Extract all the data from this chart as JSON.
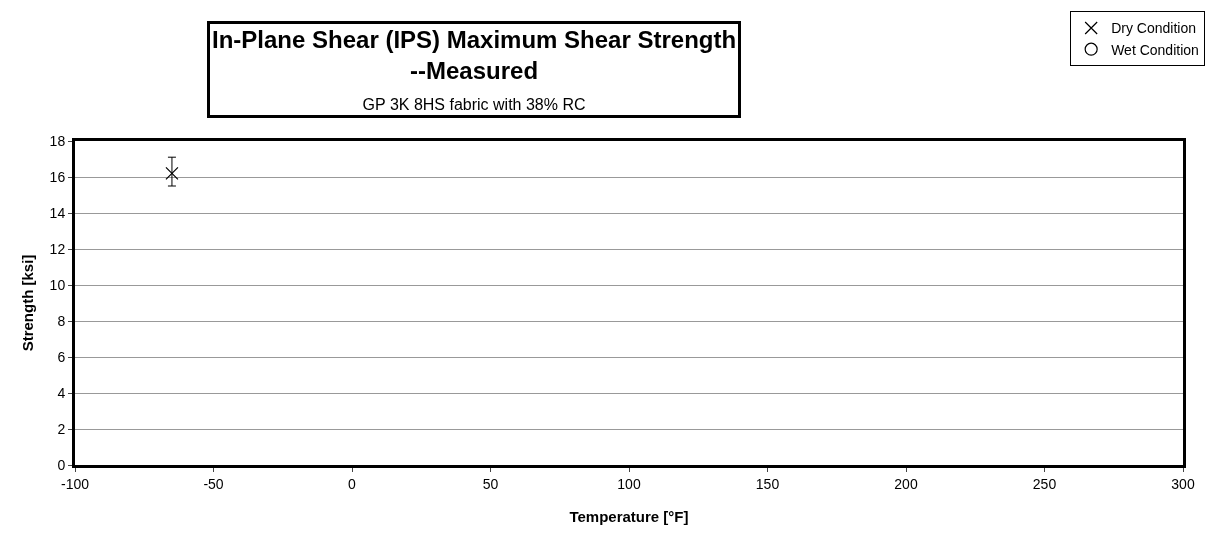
{
  "chart_data": {
    "type": "scatter",
    "title": "In-Plane Shear (IPS) Maximum Shear Strength --Measured",
    "subtitle": "GP 3K 8HS fabric with 38% RC",
    "xlabel": "Temperature [°F]",
    "ylabel": "Strength [ksi]",
    "xlim": [
      -100,
      300
    ],
    "xticks": [
      -100,
      -50,
      0,
      50,
      100,
      150,
      200,
      250,
      300
    ],
    "ylim": [
      0,
      18
    ],
    "yticks": [
      0,
      2,
      4,
      6,
      8,
      10,
      12,
      14,
      16,
      18
    ],
    "grid": "y",
    "legend": "top right",
    "series": [
      {
        "name": "Dry Condition",
        "color": "#000000",
        "marker": "cross",
        "x": [
          -65
        ],
        "values": [
          16.2
        ],
        "errors": [
          [
            15.5,
            17.1
          ]
        ]
      },
      {
        "name": "Wet Condition",
        "color": "#000000",
        "marker": "circle",
        "x": [
          null
        ],
        "values": [
          null
        ]
      }
    ]
  }
}
